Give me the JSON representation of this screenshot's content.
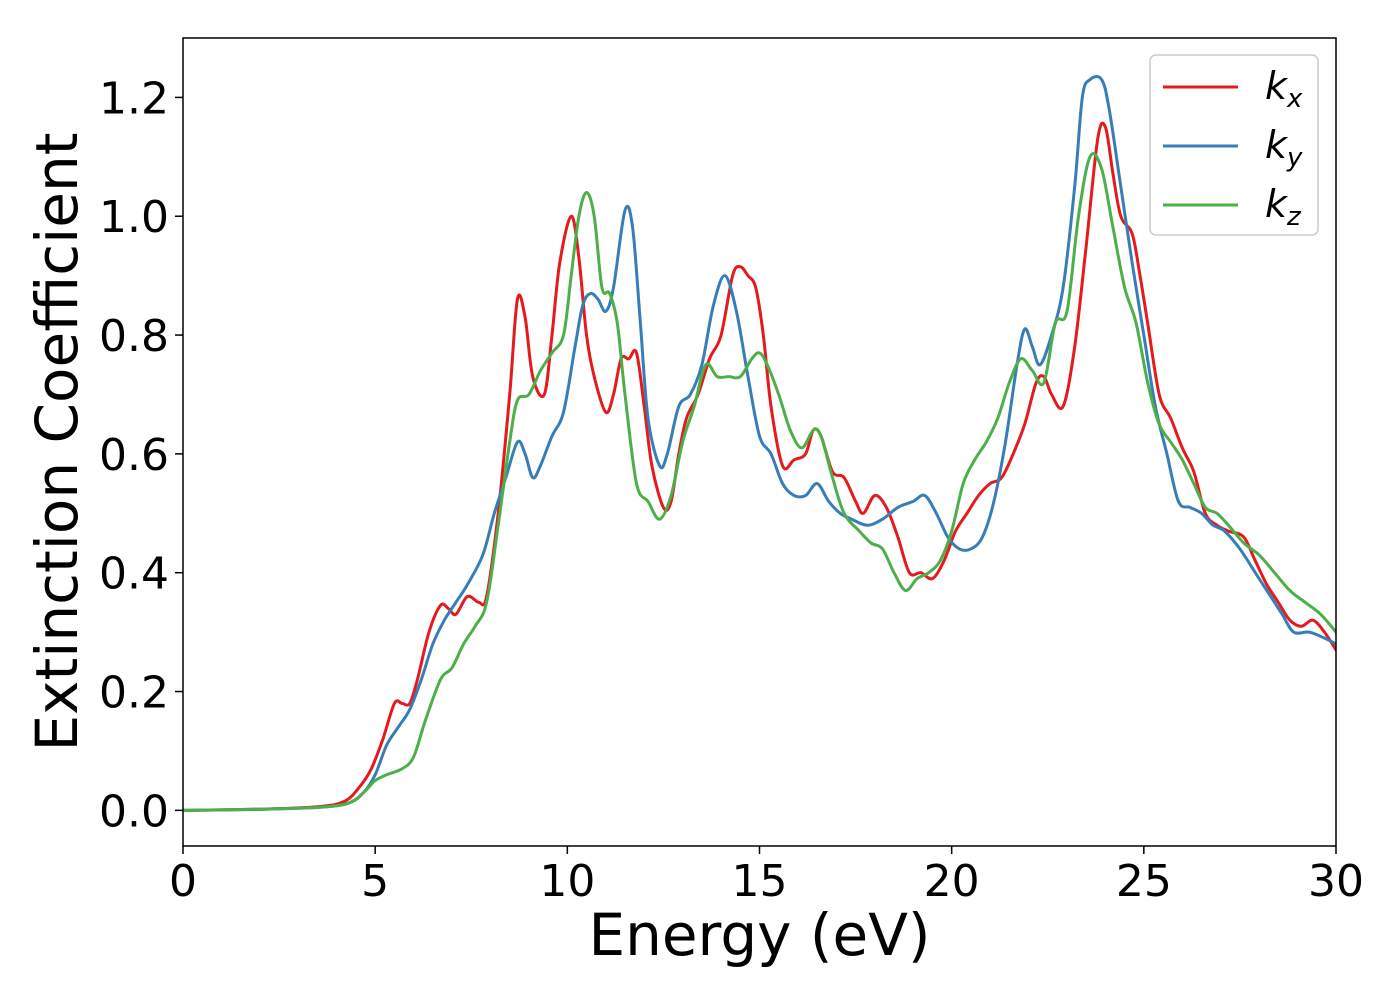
{
  "chart_data": {
    "type": "line",
    "xlabel": "Energy (eV)",
    "ylabel": "Extinction Coefficient",
    "xlim": [
      0,
      30
    ],
    "ylim": [
      -0.06,
      1.3
    ],
    "xticks": [
      0,
      5,
      10,
      15,
      20,
      25,
      30
    ],
    "xtick_labels": [
      "0",
      "5",
      "10",
      "15",
      "20",
      "25",
      "30"
    ],
    "yticks": [
      0.0,
      0.2,
      0.4,
      0.6,
      0.8,
      1.0,
      1.2
    ],
    "ytick_labels": [
      "0.0",
      "0.2",
      "0.4",
      "0.6",
      "0.8",
      "1.0",
      "1.2"
    ],
    "grid": false,
    "legend_position": "top-right",
    "series": [
      {
        "name": "k",
        "subscript": "x",
        "color": "#e41a1c",
        "points": [
          [
            0,
            0.0
          ],
          [
            2,
            0.002
          ],
          [
            3.5,
            0.006
          ],
          [
            4.2,
            0.015
          ],
          [
            4.6,
            0.04
          ],
          [
            4.9,
            0.07
          ],
          [
            5.2,
            0.12
          ],
          [
            5.5,
            0.18
          ],
          [
            5.7,
            0.18
          ],
          [
            5.9,
            0.18
          ],
          [
            6.1,
            0.22
          ],
          [
            6.4,
            0.3
          ],
          [
            6.7,
            0.345
          ],
          [
            6.9,
            0.34
          ],
          [
            7.1,
            0.33
          ],
          [
            7.4,
            0.36
          ],
          [
            7.7,
            0.35
          ],
          [
            7.9,
            0.36
          ],
          [
            8.2,
            0.5
          ],
          [
            8.5,
            0.7
          ],
          [
            8.7,
            0.86
          ],
          [
            8.9,
            0.83
          ],
          [
            9.1,
            0.73
          ],
          [
            9.4,
            0.7
          ],
          [
            9.6,
            0.8
          ],
          [
            9.8,
            0.92
          ],
          [
            10.1,
            1.0
          ],
          [
            10.3,
            0.93
          ],
          [
            10.5,
            0.8
          ],
          [
            10.7,
            0.73
          ],
          [
            11.0,
            0.67
          ],
          [
            11.2,
            0.7
          ],
          [
            11.4,
            0.76
          ],
          [
            11.6,
            0.76
          ],
          [
            11.8,
            0.77
          ],
          [
            12.0,
            0.68
          ],
          [
            12.2,
            0.58
          ],
          [
            12.5,
            0.51
          ],
          [
            12.7,
            0.52
          ],
          [
            12.9,
            0.6
          ],
          [
            13.1,
            0.66
          ],
          [
            13.4,
            0.7
          ],
          [
            13.7,
            0.76
          ],
          [
            14.0,
            0.8
          ],
          [
            14.3,
            0.9
          ],
          [
            14.5,
            0.915
          ],
          [
            14.7,
            0.9
          ],
          [
            14.9,
            0.88
          ],
          [
            15.1,
            0.8
          ],
          [
            15.3,
            0.68
          ],
          [
            15.6,
            0.58
          ],
          [
            15.9,
            0.59
          ],
          [
            16.2,
            0.6
          ],
          [
            16.4,
            0.64
          ],
          [
            16.6,
            0.63
          ],
          [
            16.9,
            0.57
          ],
          [
            17.2,
            0.56
          ],
          [
            17.5,
            0.52
          ],
          [
            17.7,
            0.5
          ],
          [
            18.0,
            0.53
          ],
          [
            18.3,
            0.51
          ],
          [
            18.6,
            0.46
          ],
          [
            18.9,
            0.4
          ],
          [
            19.2,
            0.4
          ],
          [
            19.5,
            0.39
          ],
          [
            19.8,
            0.42
          ],
          [
            20.1,
            0.47
          ],
          [
            20.4,
            0.5
          ],
          [
            20.7,
            0.53
          ],
          [
            21.0,
            0.55
          ],
          [
            21.3,
            0.56
          ],
          [
            21.6,
            0.6
          ],
          [
            21.9,
            0.65
          ],
          [
            22.2,
            0.72
          ],
          [
            22.4,
            0.73
          ],
          [
            22.6,
            0.7
          ],
          [
            22.9,
            0.68
          ],
          [
            23.2,
            0.78
          ],
          [
            23.5,
            0.95
          ],
          [
            23.8,
            1.13
          ],
          [
            24.0,
            1.15
          ],
          [
            24.2,
            1.07
          ],
          [
            24.4,
            1.0
          ],
          [
            24.7,
            0.97
          ],
          [
            24.9,
            0.9
          ],
          [
            25.1,
            0.82
          ],
          [
            25.4,
            0.7
          ],
          [
            25.7,
            0.66
          ],
          [
            26.0,
            0.61
          ],
          [
            26.3,
            0.57
          ],
          [
            26.6,
            0.5
          ],
          [
            26.9,
            0.48
          ],
          [
            27.2,
            0.47
          ],
          [
            27.6,
            0.46
          ],
          [
            27.9,
            0.42
          ],
          [
            28.2,
            0.38
          ],
          [
            28.5,
            0.35
          ],
          [
            28.8,
            0.32
          ],
          [
            29.1,
            0.31
          ],
          [
            29.4,
            0.32
          ],
          [
            29.7,
            0.3
          ],
          [
            30.0,
            0.27
          ]
        ]
      },
      {
        "name": "k",
        "subscript": "y",
        "color": "#377eb8",
        "points": [
          [
            0,
            0.0
          ],
          [
            2,
            0.002
          ],
          [
            3.5,
            0.005
          ],
          [
            4.3,
            0.012
          ],
          [
            4.7,
            0.03
          ],
          [
            5.0,
            0.06
          ],
          [
            5.3,
            0.11
          ],
          [
            5.6,
            0.14
          ],
          [
            5.9,
            0.17
          ],
          [
            6.2,
            0.22
          ],
          [
            6.5,
            0.28
          ],
          [
            6.8,
            0.32
          ],
          [
            7.1,
            0.35
          ],
          [
            7.4,
            0.38
          ],
          [
            7.8,
            0.43
          ],
          [
            8.1,
            0.5
          ],
          [
            8.4,
            0.56
          ],
          [
            8.7,
            0.62
          ],
          [
            8.9,
            0.6
          ],
          [
            9.1,
            0.56
          ],
          [
            9.3,
            0.58
          ],
          [
            9.6,
            0.63
          ],
          [
            9.9,
            0.67
          ],
          [
            10.2,
            0.78
          ],
          [
            10.4,
            0.85
          ],
          [
            10.6,
            0.87
          ],
          [
            10.8,
            0.86
          ],
          [
            11.0,
            0.84
          ],
          [
            11.2,
            0.88
          ],
          [
            11.5,
            1.01
          ],
          [
            11.7,
            0.98
          ],
          [
            11.9,
            0.82
          ],
          [
            12.1,
            0.66
          ],
          [
            12.4,
            0.58
          ],
          [
            12.6,
            0.6
          ],
          [
            12.9,
            0.68
          ],
          [
            13.2,
            0.7
          ],
          [
            13.5,
            0.75
          ],
          [
            13.8,
            0.85
          ],
          [
            14.1,
            0.9
          ],
          [
            14.4,
            0.84
          ],
          [
            14.7,
            0.73
          ],
          [
            15.0,
            0.63
          ],
          [
            15.3,
            0.6
          ],
          [
            15.6,
            0.55
          ],
          [
            15.9,
            0.53
          ],
          [
            16.2,
            0.53
          ],
          [
            16.5,
            0.55
          ],
          [
            16.8,
            0.52
          ],
          [
            17.1,
            0.5
          ],
          [
            17.4,
            0.49
          ],
          [
            17.8,
            0.48
          ],
          [
            18.2,
            0.49
          ],
          [
            18.6,
            0.51
          ],
          [
            19.0,
            0.52
          ],
          [
            19.3,
            0.53
          ],
          [
            19.6,
            0.5
          ],
          [
            19.9,
            0.46
          ],
          [
            20.2,
            0.44
          ],
          [
            20.5,
            0.44
          ],
          [
            20.8,
            0.46
          ],
          [
            21.1,
            0.52
          ],
          [
            21.4,
            0.62
          ],
          [
            21.7,
            0.75
          ],
          [
            21.9,
            0.81
          ],
          [
            22.1,
            0.78
          ],
          [
            22.3,
            0.75
          ],
          [
            22.6,
            0.8
          ],
          [
            22.9,
            0.88
          ],
          [
            23.2,
            1.05
          ],
          [
            23.4,
            1.2
          ],
          [
            23.6,
            1.23
          ],
          [
            23.9,
            1.23
          ],
          [
            24.1,
            1.18
          ],
          [
            24.4,
            1.05
          ],
          [
            24.7,
            0.92
          ],
          [
            25.0,
            0.8
          ],
          [
            25.3,
            0.68
          ],
          [
            25.6,
            0.6
          ],
          [
            25.9,
            0.52
          ],
          [
            26.2,
            0.51
          ],
          [
            26.5,
            0.5
          ],
          [
            26.8,
            0.48
          ],
          [
            27.1,
            0.47
          ],
          [
            27.5,
            0.44
          ],
          [
            27.9,
            0.4
          ],
          [
            28.3,
            0.36
          ],
          [
            28.6,
            0.33
          ],
          [
            28.9,
            0.3
          ],
          [
            29.3,
            0.3
          ],
          [
            29.7,
            0.29
          ],
          [
            30.0,
            0.28
          ]
        ]
      },
      {
        "name": "k",
        "subscript": "z",
        "color": "#4daf4a",
        "points": [
          [
            0,
            0.0
          ],
          [
            2,
            0.002
          ],
          [
            3.5,
            0.005
          ],
          [
            4.3,
            0.012
          ],
          [
            4.7,
            0.03
          ],
          [
            5.0,
            0.05
          ],
          [
            5.3,
            0.06
          ],
          [
            5.7,
            0.07
          ],
          [
            6.0,
            0.09
          ],
          [
            6.3,
            0.15
          ],
          [
            6.7,
            0.22
          ],
          [
            7.0,
            0.24
          ],
          [
            7.3,
            0.28
          ],
          [
            7.6,
            0.31
          ],
          [
            7.9,
            0.35
          ],
          [
            8.2,
            0.48
          ],
          [
            8.5,
            0.62
          ],
          [
            8.7,
            0.69
          ],
          [
            9.0,
            0.7
          ],
          [
            9.3,
            0.74
          ],
          [
            9.6,
            0.77
          ],
          [
            9.9,
            0.8
          ],
          [
            10.1,
            0.9
          ],
          [
            10.3,
            1.0
          ],
          [
            10.5,
            1.04
          ],
          [
            10.7,
            1.0
          ],
          [
            10.9,
            0.88
          ],
          [
            11.1,
            0.87
          ],
          [
            11.3,
            0.82
          ],
          [
            11.5,
            0.7
          ],
          [
            11.8,
            0.55
          ],
          [
            12.1,
            0.52
          ],
          [
            12.4,
            0.49
          ],
          [
            12.7,
            0.53
          ],
          [
            13.0,
            0.62
          ],
          [
            13.3,
            0.68
          ],
          [
            13.6,
            0.75
          ],
          [
            13.9,
            0.73
          ],
          [
            14.2,
            0.73
          ],
          [
            14.5,
            0.73
          ],
          [
            14.8,
            0.76
          ],
          [
            15.0,
            0.77
          ],
          [
            15.2,
            0.75
          ],
          [
            15.5,
            0.7
          ],
          [
            15.8,
            0.64
          ],
          [
            16.1,
            0.61
          ],
          [
            16.4,
            0.64
          ],
          [
            16.6,
            0.63
          ],
          [
            16.9,
            0.56
          ],
          [
            17.2,
            0.5
          ],
          [
            17.6,
            0.47
          ],
          [
            17.9,
            0.45
          ],
          [
            18.2,
            0.44
          ],
          [
            18.5,
            0.4
          ],
          [
            18.8,
            0.37
          ],
          [
            19.1,
            0.39
          ],
          [
            19.4,
            0.4
          ],
          [
            19.7,
            0.42
          ],
          [
            20.0,
            0.47
          ],
          [
            20.3,
            0.55
          ],
          [
            20.6,
            0.59
          ],
          [
            20.9,
            0.62
          ],
          [
            21.2,
            0.66
          ],
          [
            21.5,
            0.72
          ],
          [
            21.8,
            0.76
          ],
          [
            22.1,
            0.74
          ],
          [
            22.4,
            0.72
          ],
          [
            22.7,
            0.82
          ],
          [
            23.0,
            0.84
          ],
          [
            23.3,
            1.0
          ],
          [
            23.6,
            1.1
          ],
          [
            23.9,
            1.08
          ],
          [
            24.2,
            0.98
          ],
          [
            24.5,
            0.88
          ],
          [
            24.8,
            0.82
          ],
          [
            25.1,
            0.72
          ],
          [
            25.4,
            0.65
          ],
          [
            25.7,
            0.62
          ],
          [
            26.0,
            0.59
          ],
          [
            26.3,
            0.55
          ],
          [
            26.6,
            0.51
          ],
          [
            26.9,
            0.5
          ],
          [
            27.2,
            0.48
          ],
          [
            27.6,
            0.45
          ],
          [
            28.0,
            0.43
          ],
          [
            28.4,
            0.4
          ],
          [
            28.8,
            0.37
          ],
          [
            29.2,
            0.35
          ],
          [
            29.6,
            0.33
          ],
          [
            30.0,
            0.3
          ]
        ]
      }
    ]
  }
}
